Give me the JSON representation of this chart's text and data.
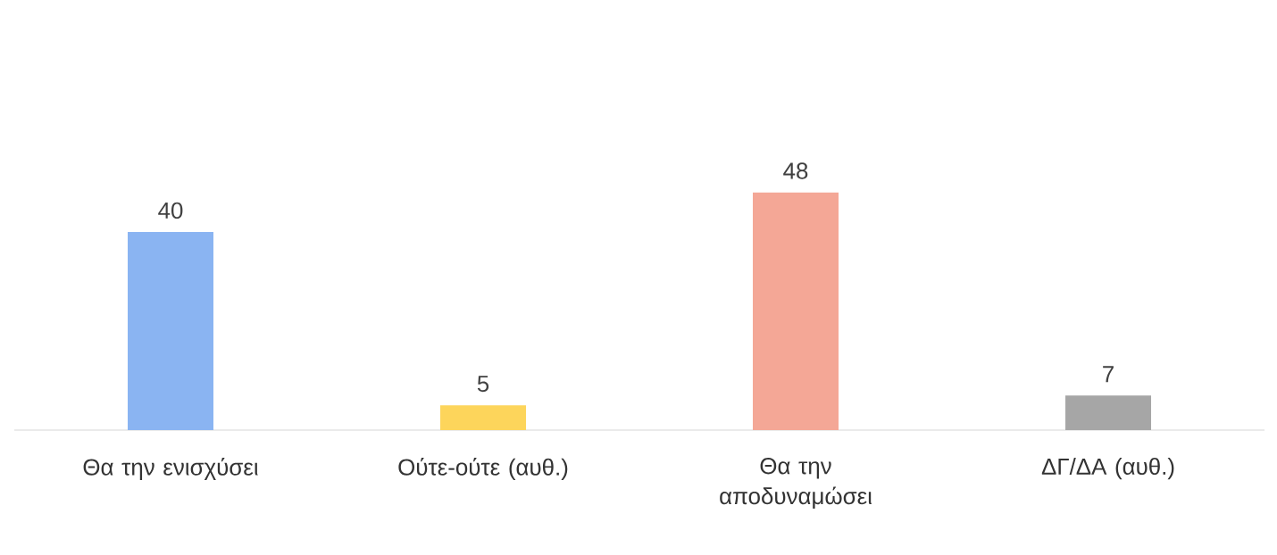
{
  "chart_data": {
    "type": "bar",
    "categories": [
      "Θα την ενισχύσει",
      "Ούτε-ούτε (αυθ.)",
      "Θα την αποδυναμώσει",
      "ΔΓ/ΔΑ (αυθ.)"
    ],
    "values": [
      40,
      5,
      48,
      7
    ],
    "colors": [
      "#8ab4f2",
      "#fdd55b",
      "#f4a796",
      "#a6a6a6"
    ],
    "data_labels": true
  }
}
